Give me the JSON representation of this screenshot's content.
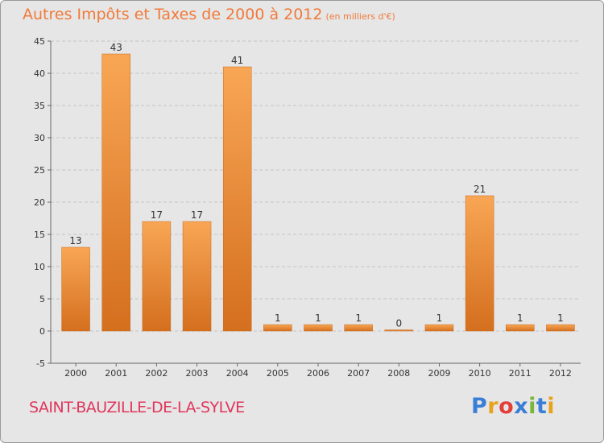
{
  "chart_data": {
    "type": "bar",
    "title": "Autres Impôts et Taxes de 2000 à 2012",
    "subtitle": "(en milliers d'€)",
    "categories": [
      "2000",
      "2001",
      "2002",
      "2003",
      "2004",
      "2005",
      "2006",
      "2007",
      "2008",
      "2009",
      "2010",
      "2011",
      "2012"
    ],
    "values": [
      13,
      43,
      17,
      17,
      41,
      1,
      1,
      1,
      0,
      1,
      21,
      1,
      1
    ],
    "ylim": [
      -5,
      45
    ],
    "yticks": [
      -5,
      0,
      5,
      10,
      15,
      20,
      25,
      30,
      35,
      40,
      45
    ],
    "grid": true,
    "bar_color": "#f2963f"
  },
  "footer": {
    "commune": "SAINT-BAUZILLE-DE-LA-SYLVE",
    "logo_text": "Proxiti",
    "logo_colors": [
      "#3a7fd5",
      "#e8a21c",
      "#e2403a",
      "#3a7fd5",
      "#7ab63a",
      "#3a7fd5",
      "#e8a21c"
    ]
  }
}
